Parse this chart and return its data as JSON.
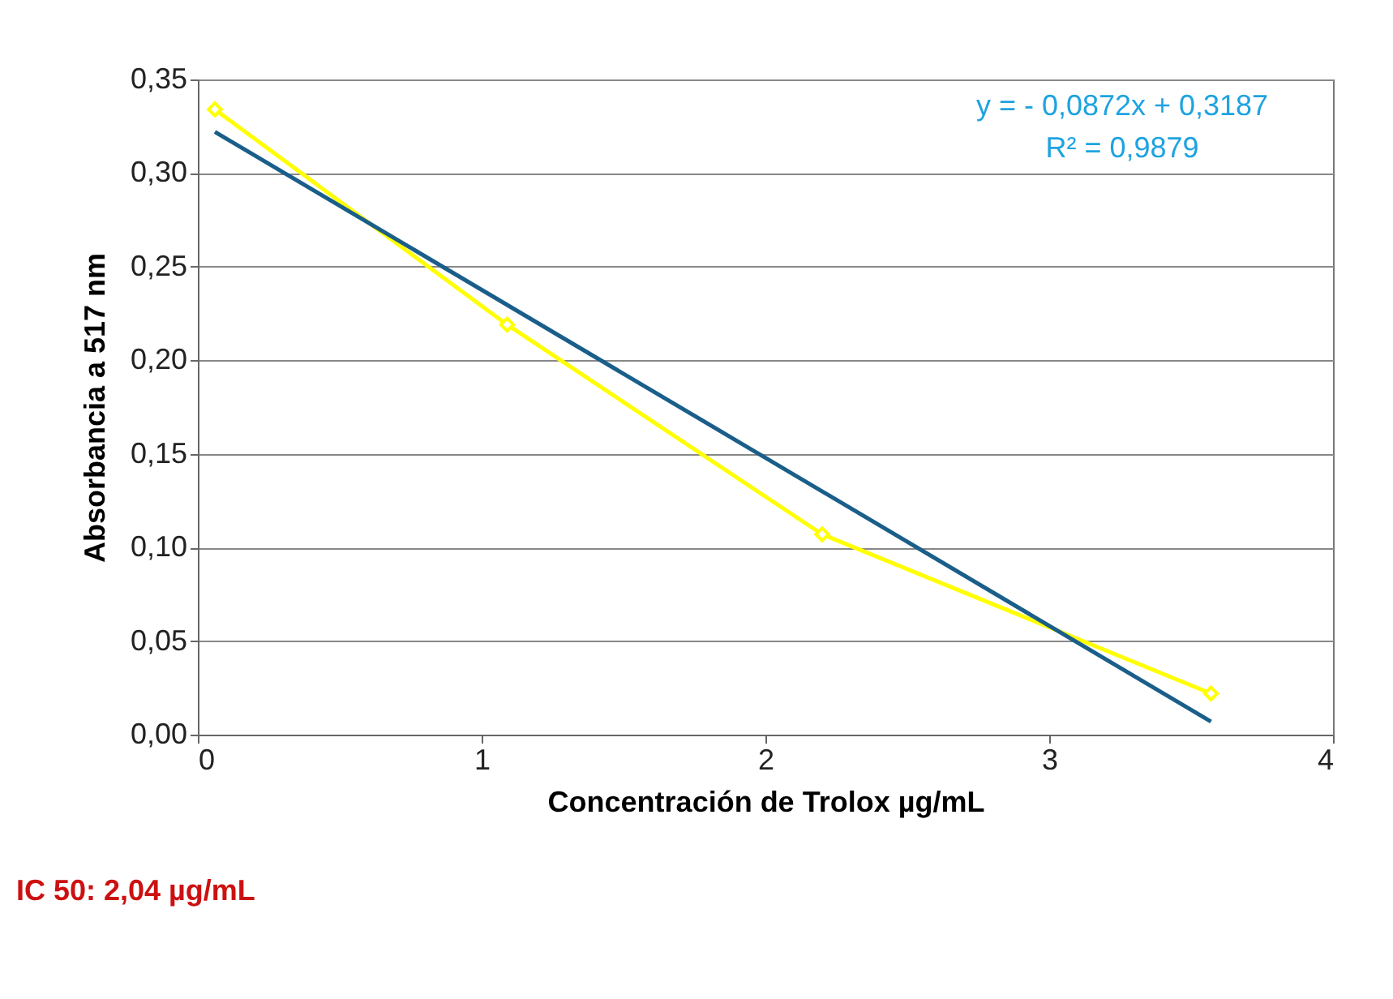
{
  "chart_data": {
    "type": "line",
    "xlabel": "Concentración de Trolox µg/mL",
    "ylabel": "Absorbancia a 517 nm",
    "xlim": [
      0,
      4
    ],
    "xticks": [
      0,
      1,
      2,
      3,
      4
    ],
    "ylim": [
      0,
      0.35
    ],
    "yticks": [
      {
        "value": 0,
        "label": "0,00"
      },
      {
        "value": 0.05,
        "label": "0,05"
      },
      {
        "value": 0.1,
        "label": "0,10"
      },
      {
        "value": 0.15,
        "label": "0,15"
      },
      {
        "value": 0.2,
        "label": "0,20"
      },
      {
        "value": 0.25,
        "label": "0,25"
      },
      {
        "value": 0.3,
        "label": "0,30"
      },
      {
        "value": 0.35,
        "label": "0,35"
      }
    ],
    "grid": "y",
    "series": [
      {
        "color": "#ffff00",
        "marker": "diamond",
        "x": [
          0.06,
          1.09,
          2.2,
          3.57
        ],
        "values": [
          0.334,
          0.219,
          0.107,
          0.022
        ]
      },
      {
        "color": "#1a5e8a",
        "marker": "none",
        "x": [
          0.06,
          3.57
        ],
        "values": [
          0.322,
          0.007
        ]
      }
    ],
    "annotations": [
      "y = - 0,0872x + 0,3187",
      "R² = 0,9879",
      "IC 50:  2,04 µg/mL"
    ]
  }
}
